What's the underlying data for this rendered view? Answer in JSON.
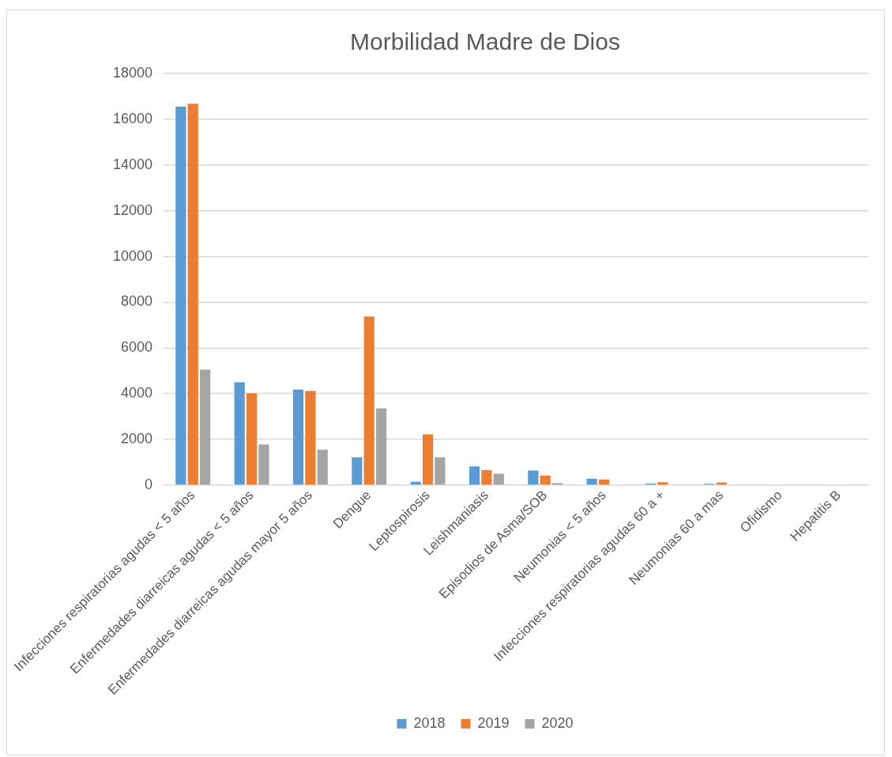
{
  "chart_data": {
    "type": "bar",
    "title": "Morbilidad Madre de Dios",
    "categories": [
      "Infecciones respiratorias agudas < 5 años",
      "Enfermedades diarreicas agudas < 5 años",
      "Enfermedades diarreicas agudas mayor 5 años",
      "Dengue",
      "Leptospirosis",
      "Leishmaniasis",
      "Episodios de Asma/SOB",
      "Neumonias < 5 años",
      "Infecciones respiratorias agudas 60 a +",
      "Neumonias 60 a mas",
      "Ofidismo",
      "Hepatitis B"
    ],
    "series": [
      {
        "name": "2018",
        "color": "#5b9bd5",
        "values": [
          16550,
          4500,
          4180,
          1220,
          150,
          820,
          640,
          280,
          70,
          60,
          null,
          null
        ]
      },
      {
        "name": "2019",
        "color": "#ed7d31",
        "values": [
          16680,
          4020,
          4120,
          7380,
          2220,
          660,
          420,
          250,
          130,
          120,
          null,
          null
        ]
      },
      {
        "name": "2020",
        "color": "#a5a5a5",
        "values": [
          5050,
          1780,
          1550,
          3360,
          1220,
          500,
          90,
          null,
          0,
          0,
          0,
          0
        ]
      }
    ],
    "ylim": [
      0,
      18000
    ],
    "yticks": [
      0,
      2000,
      4000,
      6000,
      8000,
      10000,
      12000,
      14000,
      16000,
      18000
    ],
    "grid": "y",
    "legend": "bottom"
  }
}
